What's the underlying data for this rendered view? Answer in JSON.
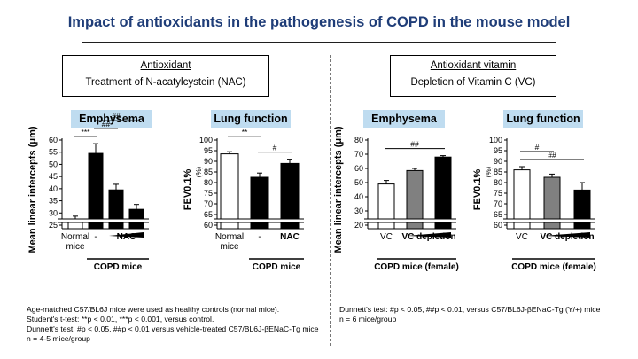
{
  "title": "Impact of antioxidants in the pathogenesis of COPD in the mouse model",
  "colors": {
    "title": "#1f3d78",
    "pill": "#bfdcf0",
    "white_bar": "#ffffff",
    "gray_bar": "#808080",
    "black_bar": "#000000"
  },
  "left_section": {
    "header": "Antioxidant",
    "subheader": "Treatment of N-acatylcystein (NAC)"
  },
  "right_section": {
    "header": "Antioxidant vitamin",
    "subheader": "Depletion of Vitamin C (VC)"
  },
  "panel_labels": {
    "emphysema_left": "Emphysema",
    "lung_left": "Lung function",
    "emphysema_right": "Emphysema",
    "lung_right": "Lung function"
  },
  "chart_data": [
    {
      "id": "c1",
      "type": "bar",
      "panel": "Emphysema",
      "ylabel": "Mean linear intercepts (μm)",
      "yticks": [
        "25",
        "30",
        "35",
        "40",
        "45",
        "50",
        "55",
        "60"
      ],
      "ylim": [
        25,
        60
      ],
      "axis_break": true,
      "bars": [
        {
          "value": 27.5,
          "err": 1.2,
          "fill": "#ffffff"
        },
        {
          "value": 54.5,
          "err": 4.0,
          "fill": "#000000"
        },
        {
          "value": 39.5,
          "err": 2.3,
          "fill": "#000000"
        },
        {
          "value": 31.5,
          "err": 2.0,
          "fill": "#000000"
        }
      ],
      "xlabels": [
        {
          "text": "Normal",
          "bar": 0
        },
        {
          "text": "mice",
          "bar": 0,
          "line": 2
        },
        {
          "text": "-",
          "bar": 1
        },
        {
          "text": "NAC",
          "bar": 2.5,
          "bold": true
        }
      ],
      "group_label": "COPD mice",
      "wedge_from_bar": 2,
      "brackets": [
        {
          "from": 0,
          "to": 1,
          "level": 0,
          "label": "***"
        },
        {
          "from": 1,
          "to": 2,
          "level": 1,
          "label": "##"
        },
        {
          "from": 1,
          "to": 3,
          "level": 2,
          "label": "##"
        }
      ]
    },
    {
      "id": "c2",
      "type": "bar",
      "panel": "Lung function",
      "ylabel": "FEV0.1%",
      "ylabel_unit": "(%)",
      "yticks": [
        "60",
        "65",
        "70",
        "75",
        "80",
        "85",
        "90",
        "95",
        "100"
      ],
      "ylim": [
        60,
        100
      ],
      "axis_break": true,
      "bars": [
        {
          "value": 93.5,
          "err": 1.0,
          "fill": "#ffffff"
        },
        {
          "value": 82.5,
          "err": 2.0,
          "fill": "#000000"
        },
        {
          "value": 89.0,
          "err": 2.0,
          "fill": "#000000"
        }
      ],
      "xlabels": [
        {
          "text": "Normal",
          "bar": 0
        },
        {
          "text": "mice",
          "bar": 0,
          "line": 2
        },
        {
          "text": "-",
          "bar": 1
        },
        {
          "text": "NAC",
          "bar": 2,
          "bold": true
        }
      ],
      "group_label": "COPD mice",
      "brackets": [
        {
          "from": 0,
          "to": 1,
          "level": 1,
          "label": "**"
        },
        {
          "from": 1,
          "to": 2,
          "level": 0,
          "label": "#"
        }
      ]
    },
    {
      "id": "c3",
      "type": "bar",
      "panel": "Emphysema",
      "ylabel": "Mean linear intercepts (μm)",
      "yticks": [
        "20",
        "30",
        "40",
        "50",
        "60",
        "70",
        "80"
      ],
      "ylim": [
        20,
        80
      ],
      "axis_break": true,
      "bars": [
        {
          "value": 49.0,
          "err": 2.5,
          "fill": "#ffffff"
        },
        {
          "value": 58.5,
          "err": 1.5,
          "fill": "#808080"
        },
        {
          "value": 68.0,
          "err": 1.0,
          "fill": "#000000"
        }
      ],
      "xlabels": [
        {
          "text": "VC",
          "bar": 0
        },
        {
          "text": "VC depletion",
          "bar": 1.5,
          "bold": true
        }
      ],
      "group_label": "COPD mice (female)",
      "wedge_from_bar": 1,
      "brackets": [
        {
          "from": 0,
          "to": 2,
          "level": 0,
          "label": "##"
        }
      ]
    },
    {
      "id": "c4",
      "type": "bar",
      "panel": "Lung function",
      "ylabel": "FEV0.1%",
      "ylabel_unit": "(%)",
      "yticks": [
        "60",
        "65",
        "70",
        "75",
        "80",
        "85",
        "90",
        "95",
        "100"
      ],
      "ylim": [
        60,
        100
      ],
      "axis_break": true,
      "bars": [
        {
          "value": 86.0,
          "err": 1.5,
          "fill": "#ffffff"
        },
        {
          "value": 82.5,
          "err": 1.5,
          "fill": "#808080"
        },
        {
          "value": 76.5,
          "err": 3.5,
          "fill": "#000000"
        }
      ],
      "xlabels": [
        {
          "text": "VC",
          "bar": 0
        },
        {
          "text": "VC depletion",
          "bar": 1.5,
          "bold": true
        }
      ],
      "group_label": "COPD mice (female)",
      "wedge_from_bar": 1,
      "brackets": [
        {
          "from": 0,
          "to": 1,
          "level": 1,
          "label": "#"
        },
        {
          "from": 0,
          "to": 2,
          "level": 0,
          "label": "##"
        }
      ]
    }
  ],
  "footnotes_left": [
    "Age-matched C57/BL6J mice were used as healthy controls (normal mice).",
    "Student's t-test: **p < 0.01, ***p < 0.001, versus control.",
    "Dunnett's test: #p < 0.05, ##p < 0.01 versus vehicle-treated C57/BL6J-βENaC-Tg mice",
    "n = 4-5 mice/group"
  ],
  "footnotes_right": [
    "Dunnett's test: #p < 0.05, ##p < 0.01, versus C57/BL6J-βENaC-Tg (Y/+) mice",
    "n = 6 mice/group"
  ]
}
